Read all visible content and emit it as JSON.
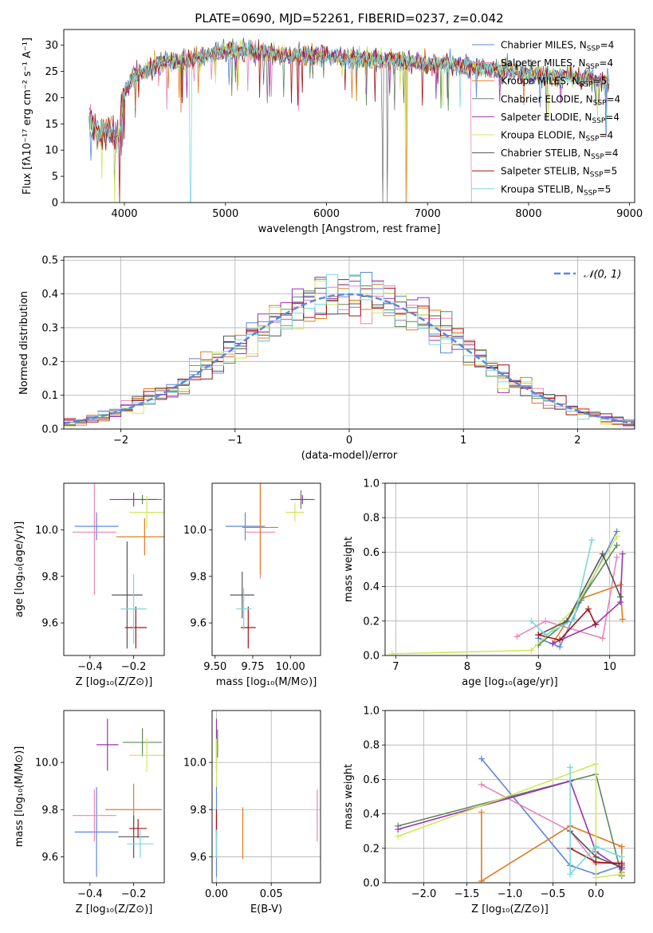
{
  "colors": [
    "#5b86e0",
    "#e985b8",
    "#e07b20",
    "#5d8a5e",
    "#9c32b0",
    "#cfe85a",
    "#555555",
    "#a21317",
    "#7ad8dc"
  ],
  "chart_data": [
    {
      "id": "spectrum",
      "type": "line",
      "title": "PLATE=0690, MJD=52261, FIBERID=0237, z=0.042",
      "xlabel": "wavelength [Angstrom, rest frame]",
      "ylabel": "Flux [fλ10⁻¹⁷ erg cm⁻² s⁻¹ A⁻¹]",
      "xlim": [
        3400,
        9050
      ],
      "ylim": [
        0,
        33
      ],
      "xticks": [
        4000,
        5000,
        6000,
        7000,
        8000,
        9000
      ],
      "yticks": [
        0,
        5,
        10,
        15,
        20,
        25,
        30
      ],
      "grid": false,
      "legend_position": "top-right",
      "legend": [
        {
          "name": "Chabrier MILES",
          "sub": "SSP",
          "n": "=4"
        },
        {
          "name": "Salpeter MILES",
          "sub": "SSP",
          "n": "=4"
        },
        {
          "name": "Kroupa MILES",
          "sub": "SSP",
          "n": "=5"
        },
        {
          "name": "Chabrier ELODIE",
          "sub": "SSP",
          "n": "=4"
        },
        {
          "name": "Salpeter ELODIE",
          "sub": "SSP",
          "n": "=4"
        },
        {
          "name": "Kroupa ELODIE",
          "sub": "SSP",
          "n": "=4"
        },
        {
          "name": "Chabrier STELIB",
          "sub": "SSP",
          "n": "=4"
        },
        {
          "name": "Salpeter STELIB",
          "sub": "SSP",
          "n": "=5"
        },
        {
          "name": "Kroupa STELIB",
          "sub": "SSP",
          "n": "=5"
        }
      ],
      "continuum": {
        "x": [
          3650,
          3700,
          3750,
          3800,
          3850,
          3900,
          3950,
          4000,
          4050,
          4100,
          4200,
          4300,
          4400,
          4500,
          4700,
          4900,
          5100,
          5300,
          5500,
          5700,
          5900,
          6100,
          6300,
          6500,
          6700,
          6900,
          7100,
          7300,
          7500,
          7700,
          7900,
          8100,
          8300,
          8500,
          8800
        ],
        "y": [
          16,
          14,
          13,
          13.5,
          14,
          12,
          13,
          21,
          25,
          24,
          25,
          26,
          27,
          27,
          28,
          29,
          29,
          28.5,
          28.5,
          28,
          28,
          27.5,
          27.5,
          27,
          27,
          26.5,
          26.5,
          26,
          25.5,
          25,
          24.5,
          24,
          24,
          23.5,
          23
        ]
      },
      "series_sketch": {
        "x": [
          3650,
          3700,
          3750,
          3800,
          3850,
          3900,
          3950,
          4000,
          4100,
          4200,
          4400,
          4600,
          4800,
          5000,
          5200,
          5400,
          5600,
          5800,
          6000,
          6200,
          6400,
          6600,
          6800,
          7000,
          7200,
          7400,
          7600,
          7800,
          8000,
          8200,
          8400,
          8600,
          8800
        ],
        "y": [
          16,
          14,
          13,
          13.5,
          14,
          12,
          13,
          21,
          24,
          25,
          27,
          27,
          28,
          29,
          29,
          28.5,
          28,
          28,
          28,
          27.5,
          27.5,
          27,
          27,
          26.5,
          26.5,
          26,
          25.5,
          25,
          24.5,
          24,
          24,
          23.5,
          23
        ]
      }
    },
    {
      "id": "residuals",
      "type": "line",
      "xlabel": "(data-model)/error",
      "ylabel": "Normed distribution",
      "xlim": [
        -2.5,
        2.5
      ],
      "ylim": [
        0,
        0.51
      ],
      "xticks": [
        -2,
        -1,
        0,
        1,
        2
      ],
      "yticks": [
        0.0,
        0.1,
        0.2,
        0.3,
        0.4,
        0.5
      ],
      "grid": true,
      "legend_position": "top-right",
      "legend_label": "𝒩(0, 1)",
      "gaussian": {
        "mean": 0,
        "sigma": 1
      }
    },
    {
      "id": "age-vs-Z",
      "type": "scatter",
      "xlabel": "Z [log₁₀(Z/Z⊙)]",
      "ylabel": "age  [log₁₀(age/yr)]",
      "xlim": [
        -0.52,
        -0.06
      ],
      "ylim": [
        9.46,
        10.2
      ],
      "xticks": [
        -0.4,
        -0.2
      ],
      "yticks": [
        9.6,
        9.8,
        10.0
      ],
      "grid": false,
      "points": [
        {
          "x": -0.37,
          "y": 10.015,
          "xerr": 0.1,
          "yerr": 0.06
        },
        {
          "x": -0.38,
          "y": 9.99,
          "xerr": 0.1,
          "yerr": 0.27
        },
        {
          "x": -0.15,
          "y": 9.97,
          "xerr": 0.13,
          "yerr": 0.08
        },
        {
          "x": -0.16,
          "y": 10.13,
          "xerr": 0.09,
          "yerr": 0.02
        },
        {
          "x": -0.2,
          "y": 10.13,
          "xerr": 0.11,
          "yerr": 0.03
        },
        {
          "x": -0.14,
          "y": 10.075,
          "xerr": 0.08,
          "yerr": 0.07
        },
        {
          "x": -0.23,
          "y": 9.72,
          "xerr": 0.07,
          "yerr": 0.23
        },
        {
          "x": -0.19,
          "y": 9.58,
          "xerr": 0.05,
          "yerr": 0.09
        },
        {
          "x": -0.2,
          "y": 9.66,
          "xerr": 0.06,
          "yerr": 0.15
        }
      ]
    },
    {
      "id": "age-vs-mass",
      "type": "scatter",
      "xlabel": "mass [log₁₀(M/M⊙)]",
      "ylabel": "",
      "xlim": [
        9.48,
        10.2
      ],
      "ylim": [
        9.46,
        10.2
      ],
      "xticks": [
        9.5,
        9.75,
        10.0
      ],
      "yticks": [
        9.6,
        9.8,
        10.0
      ],
      "grid": false,
      "points": [
        {
          "x": 9.7,
          "y": 10.015,
          "xerr": 0.13,
          "yerr": 0.06
        },
        {
          "x": 9.8,
          "y": 9.99,
          "xerr": 0.1,
          "yerr": 0.2
        },
        {
          "x": 9.8,
          "y": 10.01,
          "xerr": 0.12,
          "yerr": 0.2
        },
        {
          "x": 10.07,
          "y": 10.13,
          "xerr": 0.05,
          "yerr": 0.04
        },
        {
          "x": 10.08,
          "y": 10.13,
          "xerr": 0.08,
          "yerr": 0.02
        },
        {
          "x": 10.03,
          "y": 10.075,
          "xerr": 0.06,
          "yerr": 0.04
        },
        {
          "x": 9.68,
          "y": 9.72,
          "xerr": 0.08,
          "yerr": 0.1
        },
        {
          "x": 9.72,
          "y": 9.58,
          "xerr": 0.05,
          "yerr": 0.09
        },
        {
          "x": 9.69,
          "y": 9.66,
          "xerr": 0.05,
          "yerr": 0.09
        }
      ]
    },
    {
      "id": "weight-vs-age",
      "type": "line",
      "xlabel": "age  [log₁₀(age/yr)]",
      "ylabel": "mass weight",
      "xlim": [
        6.85,
        10.35
      ],
      "ylim": [
        0,
        1.0
      ],
      "xticks": [
        7,
        8,
        9,
        10
      ],
      "yticks": [
        0.0,
        0.2,
        0.4,
        0.6,
        0.8,
        1.0
      ],
      "grid": true,
      "series": [
        {
          "x": [
            9.0,
            9.3,
            9.6,
            10.1
          ],
          "y": [
            0.1,
            0.05,
            0.32,
            0.72
          ]
        },
        {
          "x": [
            8.7,
            9.1,
            9.9,
            10.1
          ],
          "y": [
            0.11,
            0.2,
            0.1,
            0.57
          ]
        },
        {
          "x": [
            9.2,
            9.6,
            10.15,
            10.18
          ],
          "y": [
            0.07,
            0.33,
            0.41,
            0.21
          ]
        },
        {
          "x": [
            9.0,
            9.4,
            10.1
          ],
          "y": [
            0.06,
            0.2,
            0.64
          ]
        },
        {
          "x": [
            9.2,
            9.8,
            10.15,
            10.18
          ],
          "y": [
            0.07,
            0.18,
            0.31,
            0.59
          ]
        },
        {
          "x": [
            6.95,
            8.9,
            9.5,
            10.1
          ],
          "y": [
            0.01,
            0.03,
            0.27,
            0.69
          ]
        },
        {
          "x": [
            9.0,
            9.4,
            9.9,
            10.15
          ],
          "y": [
            0.12,
            0.2,
            0.59,
            0.34
          ]
        },
        {
          "x": [
            9.0,
            9.3,
            9.7,
            9.8
          ],
          "y": [
            0.12,
            0.09,
            0.27,
            0.18
          ]
        },
        {
          "x": [
            8.9,
            9.1,
            9.5,
            9.75
          ],
          "y": [
            0.2,
            0.12,
            0.21,
            0.67
          ]
        }
      ]
    },
    {
      "id": "mass-vs-Z",
      "type": "scatter",
      "xlabel": "Z [log₁₀(Z/Z⊙)]",
      "ylabel": "mass [log₁₀(M/M⊙)]",
      "xlim": [
        -0.52,
        -0.06
      ],
      "ylim": [
        9.49,
        10.22
      ],
      "xticks": [
        -0.4,
        -0.2
      ],
      "yticks": [
        9.6,
        9.8,
        10.0
      ],
      "grid": false,
      "points": [
        {
          "x": -0.37,
          "y": 9.705,
          "xerr": 0.1,
          "yerr": 0.19
        },
        {
          "x": -0.38,
          "y": 9.775,
          "xerr": 0.1,
          "yerr": 0.11
        },
        {
          "x": -0.2,
          "y": 9.8,
          "xerr": 0.13,
          "yerr": 0.11
        },
        {
          "x": -0.16,
          "y": 10.085,
          "xerr": 0.09,
          "yerr": 0.06
        },
        {
          "x": -0.32,
          "y": 10.075,
          "xerr": 0.05,
          "yerr": 0.11
        },
        {
          "x": -0.14,
          "y": 10.03,
          "xerr": 0.08,
          "yerr": 0.07
        },
        {
          "x": -0.2,
          "y": 9.685,
          "xerr": 0.07,
          "yerr": 0.09
        },
        {
          "x": -0.18,
          "y": 9.72,
          "xerr": 0.04,
          "yerr": 0.04
        },
        {
          "x": -0.17,
          "y": 9.655,
          "xerr": 0.06,
          "yerr": 0.06
        }
      ]
    },
    {
      "id": "mass-vs-ebv",
      "type": "scatter",
      "xlabel": "E(B-V)",
      "ylabel": "",
      "xlim": [
        -0.004,
        0.095
      ],
      "ylim": [
        9.49,
        10.22
      ],
      "xticks": [
        0.0,
        0.05
      ],
      "yticks": [
        9.6,
        9.8,
        10.0
      ],
      "grid": true,
      "points": [
        {
          "x": 0.0,
          "y": 9.705,
          "xerr": 0,
          "yerr": 0.19
        },
        {
          "x": 0.092,
          "y": 9.775,
          "xerr": 0,
          "yerr": 0.11
        },
        {
          "x": 0.024,
          "y": 9.7,
          "xerr": 0,
          "yerr": 0.11
        },
        {
          "x": 0.001,
          "y": 10.08,
          "xerr": 0,
          "yerr": 0.06
        },
        {
          "x": 0.0,
          "y": 10.075,
          "xerr": 0,
          "yerr": 0.11
        },
        {
          "x": 0.0,
          "y": 10.0,
          "xerr": 0,
          "yerr": 0.1
        },
        {
          "x": 0.0,
          "y": 9.685,
          "xerr": 0,
          "yerr": 0.09
        },
        {
          "x": 0.0,
          "y": 9.75,
          "xerr": 0,
          "yerr": 0.05
        },
        {
          "x": 0.0,
          "y": 9.655,
          "xerr": 0,
          "yerr": 0.06
        }
      ]
    },
    {
      "id": "weight-vs-Z",
      "type": "line",
      "xlabel": "Z [log₁₀(Z/Z⊙)]",
      "ylabel": "mass weight",
      "xlim": [
        -2.45,
        0.45
      ],
      "ylim": [
        0,
        1.0
      ],
      "xticks": [
        -2.0,
        -1.5,
        -1.0,
        -0.5,
        0.0
      ],
      "yticks": [
        0.0,
        0.2,
        0.4,
        0.6,
        0.8,
        1.0
      ],
      "grid": true,
      "series": [
        {
          "x": [
            -1.33,
            -0.3,
            0.0,
            0.3
          ],
          "y": [
            0.72,
            0.1,
            0.05,
            0.1
          ]
        },
        {
          "x": [
            -1.33,
            -0.3,
            0.0,
            0.3
          ],
          "y": [
            0.57,
            0.3,
            0.11,
            0.12
          ]
        },
        {
          "x": [
            -1.33,
            -1.33,
            -0.3,
            0.3,
            0.3
          ],
          "y": [
            0.41,
            0.01,
            0.33,
            0.21,
            0.06
          ]
        },
        {
          "x": [
            -2.3,
            0.0,
            0.3
          ],
          "y": [
            0.33,
            0.63,
            0.04
          ]
        },
        {
          "x": [
            -2.3,
            -0.3,
            0.0,
            0.3
          ],
          "y": [
            0.31,
            0.59,
            0.18,
            0.08
          ]
        },
        {
          "x": [
            -2.3,
            0.0,
            0.0,
            0.3
          ],
          "y": [
            0.27,
            0.69,
            0.03,
            0.05
          ]
        },
        {
          "x": [
            -0.3,
            0.0,
            0.3
          ],
          "y": [
            0.3,
            0.15,
            0.09
          ]
        },
        {
          "x": [
            -0.3,
            0.0,
            0.3
          ],
          "y": [
            0.2,
            0.12,
            0.11
          ]
        },
        {
          "x": [
            -0.3,
            -0.3,
            0.0,
            0.3
          ],
          "y": [
            0.67,
            0.05,
            0.21,
            0.15
          ]
        }
      ]
    }
  ]
}
